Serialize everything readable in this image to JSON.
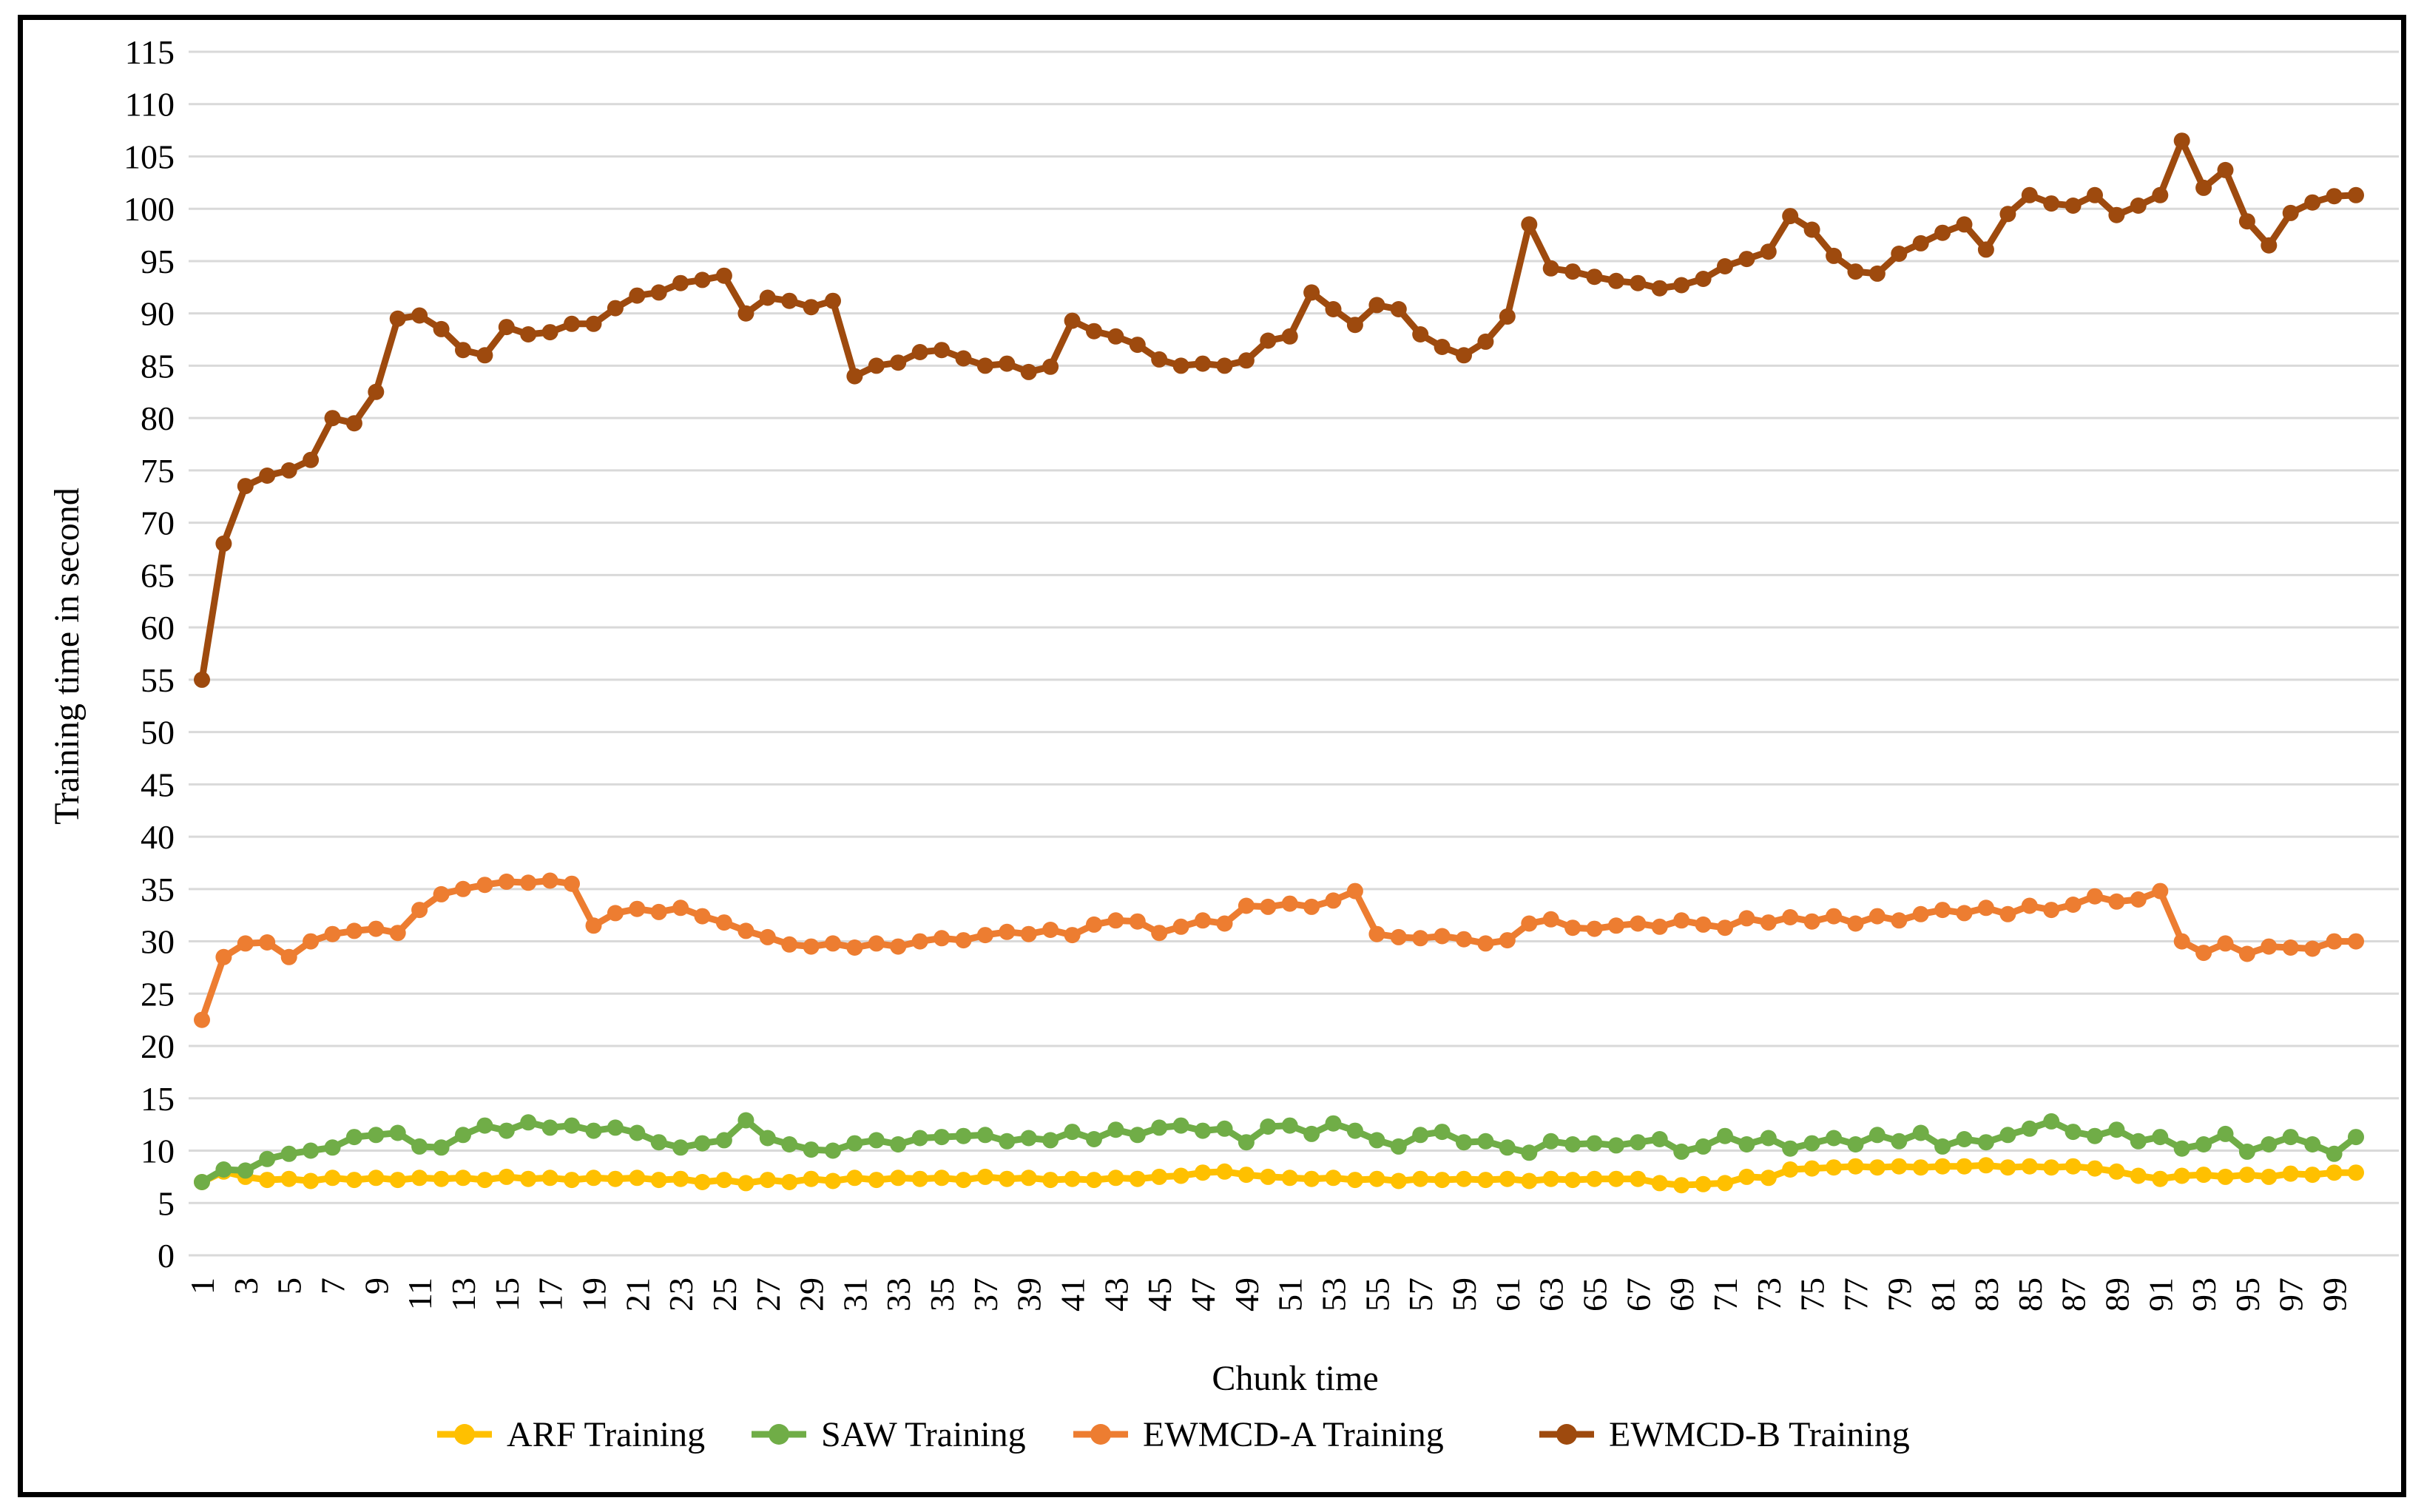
{
  "chart_data": {
    "type": "line",
    "title": "",
    "xlabel": "Chunk time",
    "ylabel": "Training time in second",
    "ylim": [
      0,
      115
    ],
    "ytick_step": 5,
    "grid": "horizontal",
    "legend_position": "bottom",
    "xtick_labels": [
      1,
      3,
      5,
      7,
      9,
      11,
      13,
      15,
      17,
      19,
      21,
      23,
      25,
      27,
      29,
      31,
      33,
      35,
      37,
      39,
      41,
      43,
      45,
      47,
      49,
      51,
      53,
      55,
      57,
      59,
      61,
      63,
      65,
      67,
      69,
      71,
      73,
      75,
      77,
      79,
      81,
      83,
      85,
      87,
      89,
      91,
      93,
      95,
      97,
      99
    ],
    "x": [
      1,
      2,
      3,
      4,
      5,
      6,
      7,
      8,
      9,
      10,
      11,
      12,
      13,
      14,
      15,
      16,
      17,
      18,
      19,
      20,
      21,
      22,
      23,
      24,
      25,
      26,
      27,
      28,
      29,
      30,
      31,
      32,
      33,
      34,
      35,
      36,
      37,
      38,
      39,
      40,
      41,
      42,
      43,
      44,
      45,
      46,
      47,
      48,
      49,
      50,
      51,
      52,
      53,
      54,
      55,
      56,
      57,
      58,
      59,
      60,
      61,
      62,
      63,
      64,
      65,
      66,
      67,
      68,
      69,
      70,
      71,
      72,
      73,
      74,
      75,
      76,
      77,
      78,
      79,
      80,
      81,
      82,
      83,
      84,
      85,
      86,
      87,
      88,
      89,
      90,
      91,
      92,
      93,
      94,
      95,
      96,
      97,
      98,
      99,
      100
    ],
    "series": [
      {
        "name": "ARF Training",
        "color": "#FFC000",
        "values": [
          7.0,
          8.0,
          7.5,
          7.2,
          7.3,
          7.1,
          7.4,
          7.2,
          7.4,
          7.2,
          7.4,
          7.3,
          7.4,
          7.2,
          7.5,
          7.3,
          7.4,
          7.2,
          7.4,
          7.3,
          7.4,
          7.2,
          7.3,
          7.0,
          7.2,
          6.9,
          7.2,
          7.0,
          7.3,
          7.1,
          7.4,
          7.2,
          7.4,
          7.3,
          7.4,
          7.2,
          7.5,
          7.3,
          7.4,
          7.2,
          7.3,
          7.2,
          7.4,
          7.3,
          7.5,
          7.6,
          7.9,
          8.0,
          7.7,
          7.5,
          7.4,
          7.3,
          7.4,
          7.2,
          7.3,
          7.1,
          7.3,
          7.2,
          7.3,
          7.2,
          7.3,
          7.1,
          7.3,
          7.2,
          7.3,
          7.3,
          7.3,
          6.9,
          6.7,
          6.8,
          6.9,
          7.5,
          7.4,
          8.2,
          8.3,
          8.4,
          8.5,
          8.4,
          8.5,
          8.4,
          8.5,
          8.5,
          8.6,
          8.4,
          8.5,
          8.4,
          8.5,
          8.3,
          8.0,
          7.6,
          7.3,
          7.6,
          7.7,
          7.5,
          7.7,
          7.5,
          7.8,
          7.7,
          7.9,
          7.9
        ]
      },
      {
        "name": "SAW Training",
        "color": "#70AD47",
        "values": [
          7.0,
          8.2,
          8.1,
          9.2,
          9.7,
          10.0,
          10.3,
          11.3,
          11.5,
          11.7,
          10.4,
          10.3,
          11.5,
          12.4,
          11.9,
          12.7,
          12.2,
          12.4,
          11.9,
          12.2,
          11.7,
          10.8,
          10.3,
          10.7,
          11.0,
          12.9,
          11.2,
          10.6,
          10.1,
          10.0,
          10.7,
          11.0,
          10.6,
          11.2,
          11.3,
          11.4,
          11.5,
          10.9,
          11.2,
          11.0,
          11.8,
          11.1,
          12.0,
          11.5,
          12.2,
          12.4,
          11.9,
          12.1,
          10.8,
          12.3,
          12.4,
          11.6,
          12.6,
          11.9,
          11.0,
          10.4,
          11.5,
          11.8,
          10.8,
          10.9,
          10.3,
          9.8,
          10.9,
          10.6,
          10.7,
          10.5,
          10.8,
          11.1,
          9.9,
          10.4,
          11.4,
          10.6,
          11.2,
          10.2,
          10.7,
          11.2,
          10.6,
          11.5,
          10.9,
          11.7,
          10.4,
          11.1,
          10.8,
          11.5,
          12.1,
          12.8,
          11.8,
          11.4,
          12.0,
          10.9,
          11.3,
          10.2,
          10.6,
          11.6,
          9.9,
          10.6,
          11.3,
          10.6,
          9.7,
          11.3
        ]
      },
      {
        "name": "EWMCD-A Training",
        "color": "#ED7D31",
        "values": [
          22.5,
          28.5,
          29.8,
          29.9,
          28.5,
          30.0,
          30.7,
          31.0,
          31.2,
          30.8,
          33.0,
          34.5,
          35.0,
          35.4,
          35.7,
          35.6,
          35.8,
          35.5,
          31.5,
          32.7,
          33.1,
          32.8,
          33.2,
          32.4,
          31.8,
          31.0,
          30.4,
          29.7,
          29.5,
          29.8,
          29.4,
          29.8,
          29.5,
          30.0,
          30.3,
          30.1,
          30.6,
          30.9,
          30.7,
          31.1,
          30.6,
          31.6,
          32.0,
          31.9,
          30.8,
          31.4,
          32.0,
          31.7,
          33.4,
          33.3,
          33.6,
          33.3,
          33.9,
          34.8,
          30.7,
          30.4,
          30.3,
          30.5,
          30.2,
          29.8,
          30.1,
          31.7,
          32.1,
          31.3,
          31.2,
          31.5,
          31.7,
          31.4,
          32.0,
          31.6,
          31.3,
          32.2,
          31.8,
          32.3,
          31.9,
          32.4,
          31.7,
          32.4,
          32.0,
          32.6,
          33.0,
          32.7,
          33.2,
          32.6,
          33.4,
          33.0,
          33.5,
          34.3,
          33.8,
          34.0,
          34.8,
          30.0,
          28.9,
          29.8,
          28.8,
          29.5,
          29.4,
          29.3,
          30.0,
          30.0
        ]
      },
      {
        "name": "EWMCD-B Training",
        "color": "#9E4A0E",
        "values": [
          55.0,
          68.0,
          73.5,
          74.5,
          75.0,
          76.0,
          80.0,
          79.5,
          82.5,
          89.5,
          89.8,
          88.5,
          86.5,
          86.0,
          88.7,
          88.0,
          88.2,
          89.0,
          89.0,
          90.5,
          91.7,
          92.0,
          92.9,
          93.2,
          93.6,
          90.0,
          91.5,
          91.2,
          90.6,
          91.2,
          84.0,
          85.0,
          85.3,
          86.3,
          86.5,
          85.7,
          85.0,
          85.2,
          84.4,
          84.9,
          89.3,
          88.3,
          87.8,
          87.0,
          85.6,
          85.0,
          85.2,
          85.0,
          85.5,
          87.4,
          87.8,
          92.0,
          90.4,
          88.9,
          90.8,
          90.4,
          88.0,
          86.8,
          86.0,
          87.3,
          89.7,
          98.5,
          94.3,
          94.0,
          93.5,
          93.1,
          92.9,
          92.4,
          92.7,
          93.3,
          94.5,
          95.2,
          95.9,
          99.3,
          98.0,
          95.5,
          94.0,
          93.8,
          95.7,
          96.7,
          97.7,
          98.5,
          96.1,
          99.5,
          101.3,
          100.5,
          100.3,
          101.3,
          99.4,
          100.3,
          101.3,
          106.5,
          102.0,
          103.7,
          98.8,
          96.5,
          99.6,
          100.6,
          101.2,
          101.3
        ]
      }
    ]
  },
  "layout_text": {
    "y_axis_title": "Training time in second",
    "x_axis_title": "Chunk time"
  }
}
